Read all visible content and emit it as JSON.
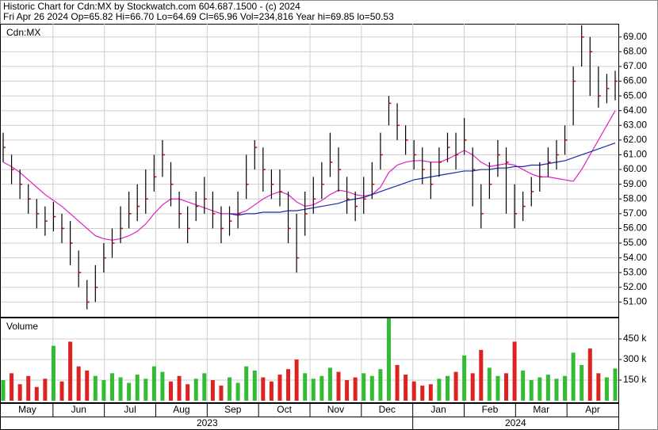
{
  "chart_data": {
    "type": "ohlc",
    "title": "Historic Chart for Cdn:MX by Stockwatch.com 604.687.1500 - (c) 2024",
    "subtitle": "Fri Apr 26 2024   Op=65.82   Hi=66.70   Lo=64.69   Cl=65.96   Vol=234,816   Year hi=69.85   lo=50.53",
    "symbol": "Cdn:MX",
    "bar_color": "#000000",
    "close_color": "#cc0000",
    "high": [
      62.5,
      61,
      60,
      59,
      58,
      57.5,
      57.8,
      57,
      56.5,
      54.5,
      52.5,
      53.5,
      55,
      56,
      57.5,
      58.5,
      59,
      60,
      61,
      62,
      60.5,
      58.5,
      57.5,
      58.5,
      59.5,
      58.5,
      57.5,
      57.5,
      58.5,
      61,
      62,
      61.5,
      60,
      60,
      58.5,
      57,
      58.5,
      59.5,
      60.5,
      62.5,
      61.5,
      59.5,
      58.5,
      59.5,
      60.5,
      62.5,
      65,
      64.5,
      63,
      62,
      61.5,
      60.5,
      61.5,
      62.5,
      62.5,
      63.5,
      61.5,
      59,
      60.5,
      62,
      61.5,
      59,
      58.5,
      59.5,
      60.5,
      61.5,
      62,
      63,
      67,
      69.8,
      69,
      67,
      66.5,
      66.7
    ],
    "low": [
      60.5,
      59,
      58,
      57,
      56,
      55.5,
      55.8,
      55,
      53.5,
      52,
      50.5,
      51,
      53,
      54,
      55,
      56,
      56.5,
      57,
      58.5,
      59.5,
      57.5,
      56,
      55,
      56.5,
      57,
      56,
      55,
      55.5,
      56,
      58,
      60,
      58.5,
      58,
      57.5,
      55,
      53,
      55.5,
      57,
      58,
      59.5,
      58.5,
      57,
      56.5,
      57,
      58,
      60,
      63,
      62,
      61,
      60,
      59,
      58,
      59.5,
      60.5,
      60,
      61,
      57.5,
      56,
      58,
      59.5,
      57,
      56,
      56.5,
      57.5,
      58.5,
      59.5,
      60,
      61,
      63,
      67,
      65,
      64.2,
      64.5,
      64.7
    ],
    "close": [
      61.5,
      60,
      59,
      58,
      57,
      56.5,
      56.8,
      56,
      55,
      53,
      51,
      52,
      54,
      55,
      56,
      57,
      57.5,
      58,
      59.5,
      61,
      59,
      57,
      56,
      57.5,
      58,
      57,
      56,
      56.5,
      57,
      59,
      61.5,
      60,
      59,
      58.5,
      56,
      54,
      57,
      58,
      59,
      60.5,
      60,
      58,
      57.5,
      58,
      59,
      61,
      64.5,
      63,
      62,
      61,
      60,
      59,
      60.5,
      61.5,
      61,
      62,
      60,
      57,
      59,
      61,
      60.5,
      57,
      57.5,
      58.5,
      59.5,
      60.5,
      61,
      62,
      66,
      69,
      68,
      65,
      65.5,
      66
    ],
    "moving_averages": [
      {
        "color": "#e020c0",
        "values": [
          60.5,
          60.2,
          59.8,
          59.3,
          58.8,
          58.3,
          57.9,
          57.5,
          57,
          56.5,
          56,
          55.5,
          55.3,
          55.2,
          55.3,
          55.5,
          55.8,
          56.3,
          57,
          57.6,
          58,
          58,
          57.8,
          57.6,
          57.4,
          57.2,
          57,
          57,
          57,
          57.2,
          57.6,
          58,
          58.3,
          58.5,
          58.3,
          57.8,
          57.5,
          57.6,
          57.9,
          58.3,
          58.6,
          58.5,
          58.3,
          58.2,
          58.3,
          58.8,
          59.8,
          60.3,
          60.5,
          60.6,
          60.6,
          60.5,
          60.5,
          60.7,
          61,
          61.3,
          61,
          60.5,
          60.2,
          60.3,
          60.4,
          60.3,
          60,
          59.7,
          59.5,
          59.5,
          59.4,
          59.3,
          59.2,
          60,
          61,
          62,
          63,
          64
        ]
      },
      {
        "color": "#1a2aa8",
        "values": [
          null,
          null,
          null,
          null,
          null,
          null,
          null,
          null,
          null,
          null,
          null,
          null,
          null,
          null,
          null,
          null,
          null,
          null,
          null,
          null,
          null,
          null,
          null,
          null,
          null,
          null,
          null,
          57,
          56.9,
          57,
          57,
          57.1,
          57.1,
          57.1,
          57.2,
          57.2,
          57.3,
          57.4,
          57.5,
          57.6,
          57.7,
          57.9,
          58,
          58.1,
          58.3,
          58.5,
          58.7,
          58.9,
          59.1,
          59.3,
          59.4,
          59.5,
          59.6,
          59.7,
          59.8,
          59.9,
          59.9,
          60,
          60,
          60.1,
          60.1,
          60.2,
          60.2,
          60.3,
          60.3,
          60.4,
          60.5,
          60.6,
          60.8,
          61,
          61.2,
          61.4,
          61.6,
          61.8
        ]
      }
    ],
    "ylim": [
      50,
      69.9
    ],
    "yticks": [
      {
        "value": 51,
        "label": "51.00"
      },
      {
        "value": 52,
        "label": "52.00"
      },
      {
        "value": 53,
        "label": "53.00"
      },
      {
        "value": 54,
        "label": "54.00"
      },
      {
        "value": 55,
        "label": "55.00"
      },
      {
        "value": 56,
        "label": "56.00"
      },
      {
        "value": 57,
        "label": "57.00"
      },
      {
        "value": 58,
        "label": "58.00"
      },
      {
        "value": 59,
        "label": "59.00"
      },
      {
        "value": 60,
        "label": "60.00"
      },
      {
        "value": 61,
        "label": "61.00"
      },
      {
        "value": 62,
        "label": "62.00"
      },
      {
        "value": 63,
        "label": "63.00"
      },
      {
        "value": 64,
        "label": "64.00"
      },
      {
        "value": 65,
        "label": "65.00"
      },
      {
        "value": 66,
        "label": "66.00"
      },
      {
        "value": 67,
        "label": "67.00"
      },
      {
        "value": 68,
        "label": "68.00"
      },
      {
        "value": 69,
        "label": "69.00"
      }
    ],
    "grid": true,
    "volume": {
      "label": "Volume",
      "up_color": "#33bb33",
      "down_color": "#dd2222",
      "values": [
        150000,
        200000,
        120000,
        180000,
        100000,
        160000,
        400000,
        140000,
        430000,
        250000,
        220000,
        180000,
        150000,
        200000,
        170000,
        130000,
        190000,
        160000,
        250000,
        210000,
        140000,
        180000,
        120000,
        160000,
        200000,
        150000,
        110000,
        170000,
        130000,
        250000,
        220000,
        170000,
        140000,
        190000,
        230000,
        300000,
        200000,
        160000,
        180000,
        240000,
        210000,
        150000,
        170000,
        200000,
        180000,
        230000,
        600000,
        260000,
        190000,
        140000,
        110000,
        120000,
        160000,
        180000,
        210000,
        330000,
        200000,
        370000,
        240000,
        180000,
        200000,
        430000,
        220000,
        150000,
        170000,
        190000,
        160000,
        180000,
        350000,
        260000,
        380000,
        200000,
        170000,
        234816
      ],
      "ylim": [
        0,
        600000
      ],
      "yticks": [
        {
          "value": 150000,
          "label": "150 k"
        },
        {
          "value": 300000,
          "label": "300 k"
        },
        {
          "value": 450000,
          "label": "450 k"
        }
      ]
    },
    "months": [
      "May",
      "Jun",
      "Jul",
      "Aug",
      "Sep",
      "Oct",
      "Nov",
      "Dec",
      "Jan",
      "Feb",
      "Mar",
      "Apr"
    ],
    "years": [
      "2023",
      "2024"
    ]
  }
}
